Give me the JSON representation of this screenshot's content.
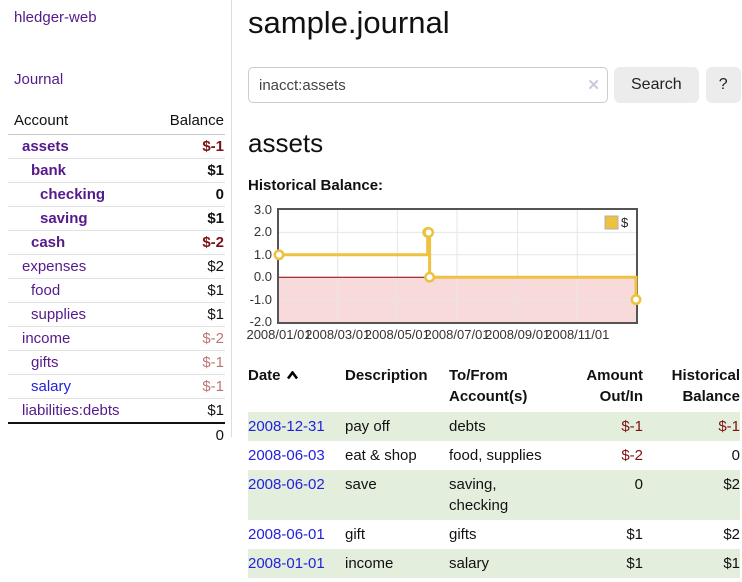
{
  "sidebar": {
    "brand": "hledger-web",
    "journal_link": "Journal",
    "accounts": {
      "headers": [
        "Account",
        "Balance"
      ],
      "rows": [
        {
          "name": "assets",
          "balance": "$-1",
          "level": 1,
          "bold": true,
          "balance_class": "neg-strong"
        },
        {
          "name": "bank",
          "balance": "$1",
          "level": 2,
          "bold": true,
          "balance_class": ""
        },
        {
          "name": "checking",
          "balance": "0",
          "level": 3,
          "bold": true,
          "balance_class": ""
        },
        {
          "name": "saving",
          "balance": "$1",
          "level": 3,
          "bold": true,
          "balance_class": ""
        },
        {
          "name": "cash",
          "balance": "$-2",
          "level": 2,
          "bold": true,
          "balance_class": "neg-strong"
        },
        {
          "name": "expenses",
          "balance": "$2",
          "level": 1,
          "bold": false,
          "balance_class": ""
        },
        {
          "name": "food",
          "balance": "$1",
          "level": 2,
          "bold": false,
          "balance_class": ""
        },
        {
          "name": "supplies",
          "balance": "$1",
          "level": 2,
          "bold": false,
          "balance_class": ""
        },
        {
          "name": "income",
          "balance": "$-2",
          "level": 1,
          "bold": false,
          "balance_class": "neg-soft"
        },
        {
          "name": "gifts",
          "balance": "$-1",
          "level": 2,
          "bold": false,
          "balance_class": "neg-soft"
        },
        {
          "name": "salary",
          "balance": "$-1",
          "level": 2,
          "bold": false,
          "balance_class": "neg-soft",
          "link": "blue"
        },
        {
          "name": "liabilities:debts",
          "balance": "$1",
          "level": 1,
          "bold": false,
          "balance_class": ""
        }
      ],
      "total": "0"
    }
  },
  "main": {
    "title": "sample.journal",
    "search": {
      "value": "inacct:assets",
      "clear_icon": "✕",
      "button_label": "Search",
      "help_label": "?"
    },
    "account_heading": "assets",
    "chart_heading": "Historical Balance:"
  },
  "chart_data": {
    "type": "line",
    "title": "Historical Balance:",
    "xlim": [
      "2008-01-01",
      "2008-12-31"
    ],
    "ylim": [
      -2,
      3
    ],
    "y_ticks": [
      3.0,
      2.0,
      1.0,
      0.0,
      -1.0,
      -2.0
    ],
    "x_ticks": [
      "2008/01/01",
      "2008/03/01",
      "2008/05/01",
      "2008/07/01",
      "2008/09/01",
      "2008/11/01"
    ],
    "series": [
      {
        "name": "$",
        "color": "#EDC240",
        "steps": true,
        "points": [
          [
            "2008-01-01",
            1
          ],
          [
            "2008-06-01",
            2
          ],
          [
            "2008-06-02",
            2
          ],
          [
            "2008-06-03",
            0
          ],
          [
            "2008-12-31",
            -1
          ]
        ]
      }
    ],
    "legend_position": "top-right",
    "grid": true,
    "negative_region_color": "#f9dada",
    "zero_line_color": "#8b0000",
    "border_color": "#545454",
    "grid_color": "#e6e6e6"
  },
  "register": {
    "headers": {
      "date": "Date",
      "description": "Description",
      "tofrom_line1": "To/From",
      "tofrom_line2": "Account(s)",
      "amount_line1": "Amount",
      "amount_line2": "Out/In",
      "balance_line1": "Historical",
      "balance_line2": "Balance"
    },
    "sort_icon": "chevron-up",
    "rows": [
      {
        "date": "2008-12-31",
        "description": "pay off",
        "accounts": "debts",
        "amount": "$-1",
        "balance": "$-1",
        "amount_negative": true,
        "balance_negative": true,
        "striped": true
      },
      {
        "date": "2008-06-03",
        "description": "eat & shop",
        "accounts": "food, supplies",
        "amount": "$-2",
        "balance": "0",
        "amount_negative": true,
        "balance_negative": false,
        "striped": false
      },
      {
        "date": "2008-06-02",
        "description": "save",
        "accounts": "saving, checking",
        "amount": "0",
        "balance": "$2",
        "amount_negative": false,
        "balance_negative": false,
        "striped": true
      },
      {
        "date": "2008-06-01",
        "description": "gift",
        "accounts": "gifts",
        "amount": "$1",
        "balance": "$2",
        "amount_negative": false,
        "balance_negative": false,
        "striped": false
      },
      {
        "date": "2008-01-01",
        "description": "income",
        "accounts": "salary",
        "amount": "$1",
        "balance": "$1",
        "amount_negative": false,
        "balance_negative": false,
        "striped": true
      }
    ]
  },
  "colors": {
    "link_visited_purple": "#551a8b",
    "link_blue": "#2222dd",
    "negative_strong": "#7b1113",
    "negative_soft": "#bc7676",
    "row_stripe_green": "#e3eedd",
    "button_gray": "#ececec",
    "series_gold": "#EDC240"
  }
}
